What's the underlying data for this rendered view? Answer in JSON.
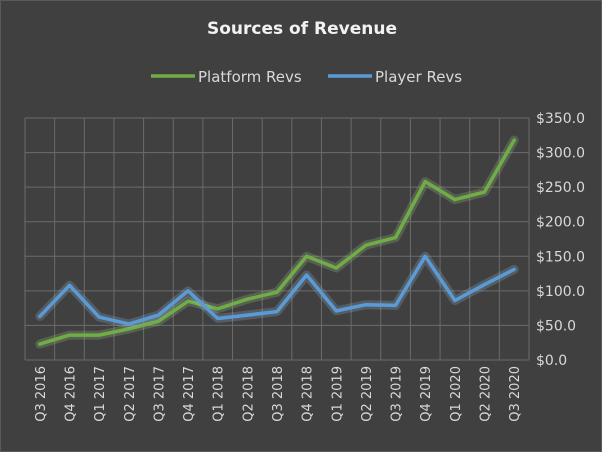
{
  "chart_data": {
    "type": "line",
    "title": "Sources of Revenue",
    "categories": [
      "Q3 2016",
      "Q4 2016",
      "Q1 2017",
      "Q2 2017",
      "Q3 2017",
      "Q4 2017",
      "Q1 2018",
      "Q2 2018",
      "Q3 2018",
      "Q4 2018",
      "Q1 2019",
      "Q2 2019",
      "Q3 2019",
      "Q4 2019",
      "Q1 2020",
      "Q2 2020",
      "Q3 2020"
    ],
    "series": [
      {
        "name": "Platform Revs",
        "color": "#70ad47",
        "glow": "#a9d18e",
        "values": [
          23,
          36,
          36,
          45,
          56,
          85,
          74,
          88,
          98,
          150,
          133,
          166,
          177,
          258,
          232,
          243,
          318
        ]
      },
      {
        "name": "Player Revs",
        "color": "#5b9bd5",
        "glow": "#9dc3e6",
        "values": [
          63,
          108,
          62,
          52,
          65,
          100,
          60,
          65,
          70,
          123,
          71,
          80,
          79,
          150,
          86,
          109,
          131
        ]
      }
    ],
    "yticks": [
      "$0.0",
      "$50.0",
      "$100.0",
      "$150.0",
      "$200.0",
      "$250.0",
      "$300.0",
      "$350.0"
    ],
    "ylim": [
      0,
      350
    ],
    "y_axis_side": "right",
    "grid": true,
    "legend_position": "top",
    "xlabel": "",
    "ylabel": ""
  }
}
